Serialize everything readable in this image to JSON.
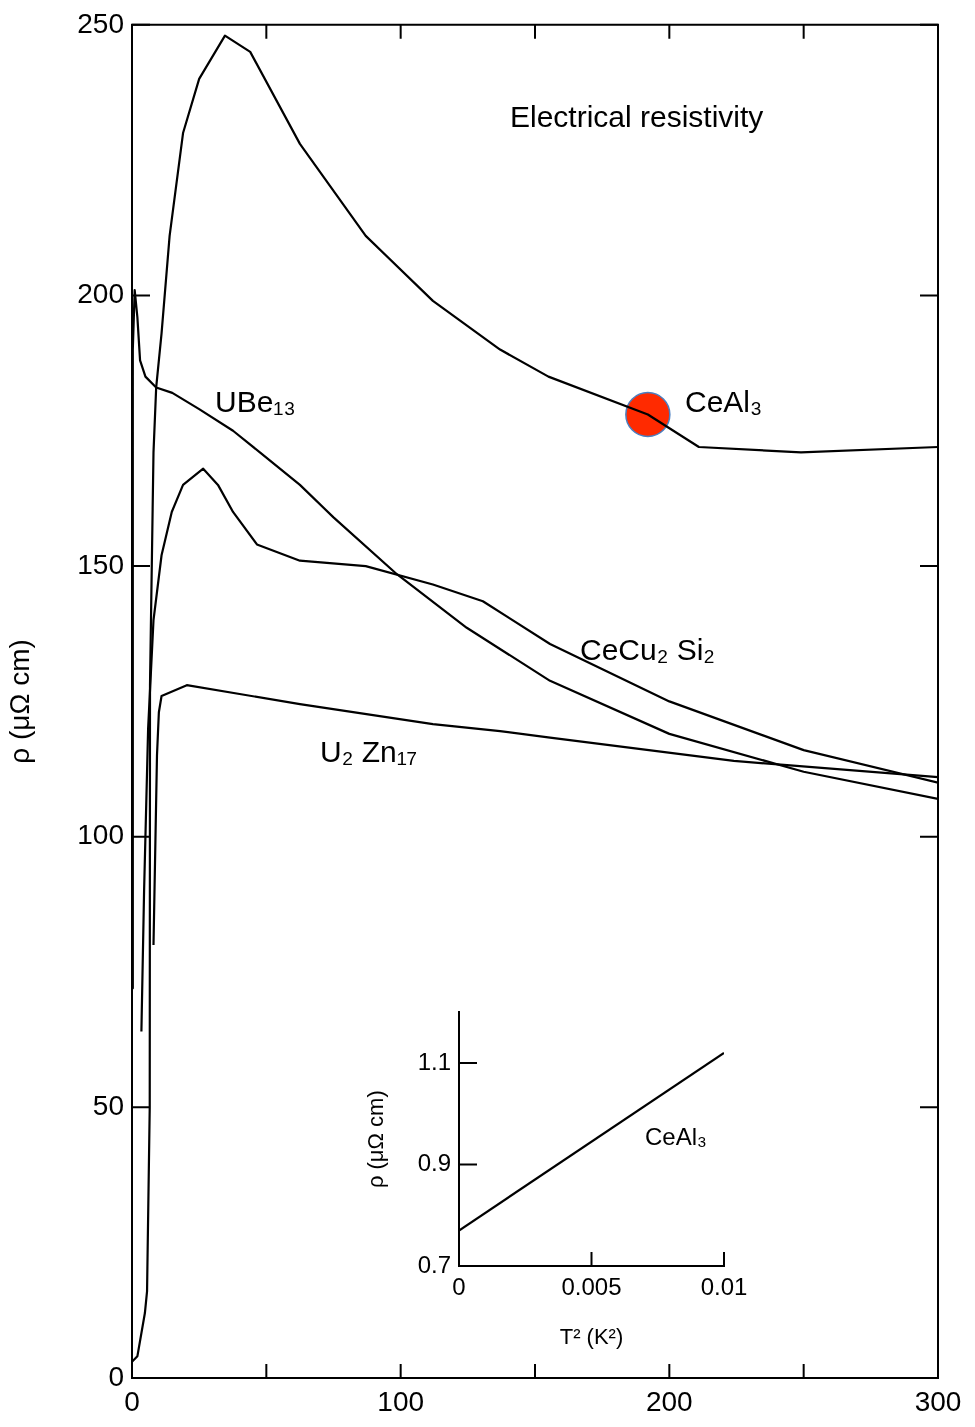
{
  "chart_data": [
    {
      "type": "line",
      "ylabel": "ρ (μΩ cm)",
      "annotations": [
        "Electrical resistivity"
      ],
      "xlim": [
        0,
        300
      ],
      "xticks": [
        0,
        {
          "value": 50,
          "label": null
        },
        100,
        {
          "value": 150,
          "label": null
        },
        200,
        {
          "value": 250,
          "label": null
        },
        300
      ],
      "ylim": [
        0,
        250
      ],
      "yticks": [
        0,
        50,
        100,
        150,
        200,
        250
      ],
      "grid": false,
      "legend": false,
      "marker": "none",
      "line_style": "solid",
      "series": [
        {
          "name": "CeAl₃",
          "color": "#000000",
          "x": [
            0,
            2,
            4.8,
            5.6,
            6.6,
            6.7,
            8,
            9,
            11,
            14,
            19,
            25,
            34.6,
            44,
            62.5,
            87,
            112,
            137,
            155,
            192,
            211,
            249,
            300
          ],
          "values": [
            3,
            4,
            12,
            16,
            50,
            128,
            171,
            183,
            193,
            211,
            230,
            240,
            248,
            245,
            228,
            211,
            199,
            190,
            185,
            178,
            172,
            171,
            172
          ]
        },
        {
          "name": "UBe₁₃",
          "color": "#000000",
          "x": [
            0,
            0.3,
            1,
            2,
            3,
            5,
            9,
            15,
            25,
            37.6,
            47.6,
            62.5,
            75,
            98.6,
            124.6,
            155.6,
            200,
            250,
            300
          ],
          "values": [
            72,
            190,
            201,
            196,
            188,
            185,
            183,
            182,
            179,
            175,
            171,
            165,
            159,
            148.5,
            138.6,
            128.8,
            119,
            112,
            107
          ]
        },
        {
          "name": "CeCu₂ Si₂",
          "color": "#000000",
          "x": [
            3.5,
            4.5,
            6,
            8,
            11,
            14.8,
            19,
            26.5,
            32,
            37.6,
            46.5,
            62.5,
            87,
            112,
            130.6,
            155.6,
            200,
            250,
            300
          ],
          "values": [
            64,
            90,
            120,
            140,
            152,
            160,
            165,
            168,
            165,
            160,
            154,
            151,
            150,
            146.6,
            143.5,
            135.6,
            125,
            116,
            110
          ]
        },
        {
          "name": "U₂ Zn₁₇",
          "color": "#000000",
          "x": [
            8,
            9.3,
            10,
            11,
            20.4,
            62.5,
            112,
            137,
            155.6,
            224,
            300
          ],
          "values": [
            80,
            115,
            123,
            126,
            128,
            124.5,
            120.8,
            119.5,
            118.3,
            114,
            111
          ]
        },
        {
          "type": "scatter",
          "color": "#ff2a00",
          "marker": "circle",
          "x": [
            192
          ],
          "values": [
            178
          ]
        }
      ]
    },
    {
      "type": "line",
      "xlabel": "T² (K²)",
      "ylabel": "ρ (μΩ cm)",
      "xlim": [
        0,
        0.01
      ],
      "xticks": [
        0,
        0.005,
        0.01
      ],
      "ylim": [
        0.7,
        1.2
      ],
      "yticks": [
        0.7,
        0.9,
        1.1
      ],
      "grid": false,
      "legend": false,
      "marker": "none",
      "line_style": "solid",
      "series": [
        {
          "name": "CeAl₃",
          "color": "#000000",
          "x": [
            0,
            0.01
          ],
          "values": [
            0.77,
            1.12
          ]
        }
      ]
    }
  ]
}
